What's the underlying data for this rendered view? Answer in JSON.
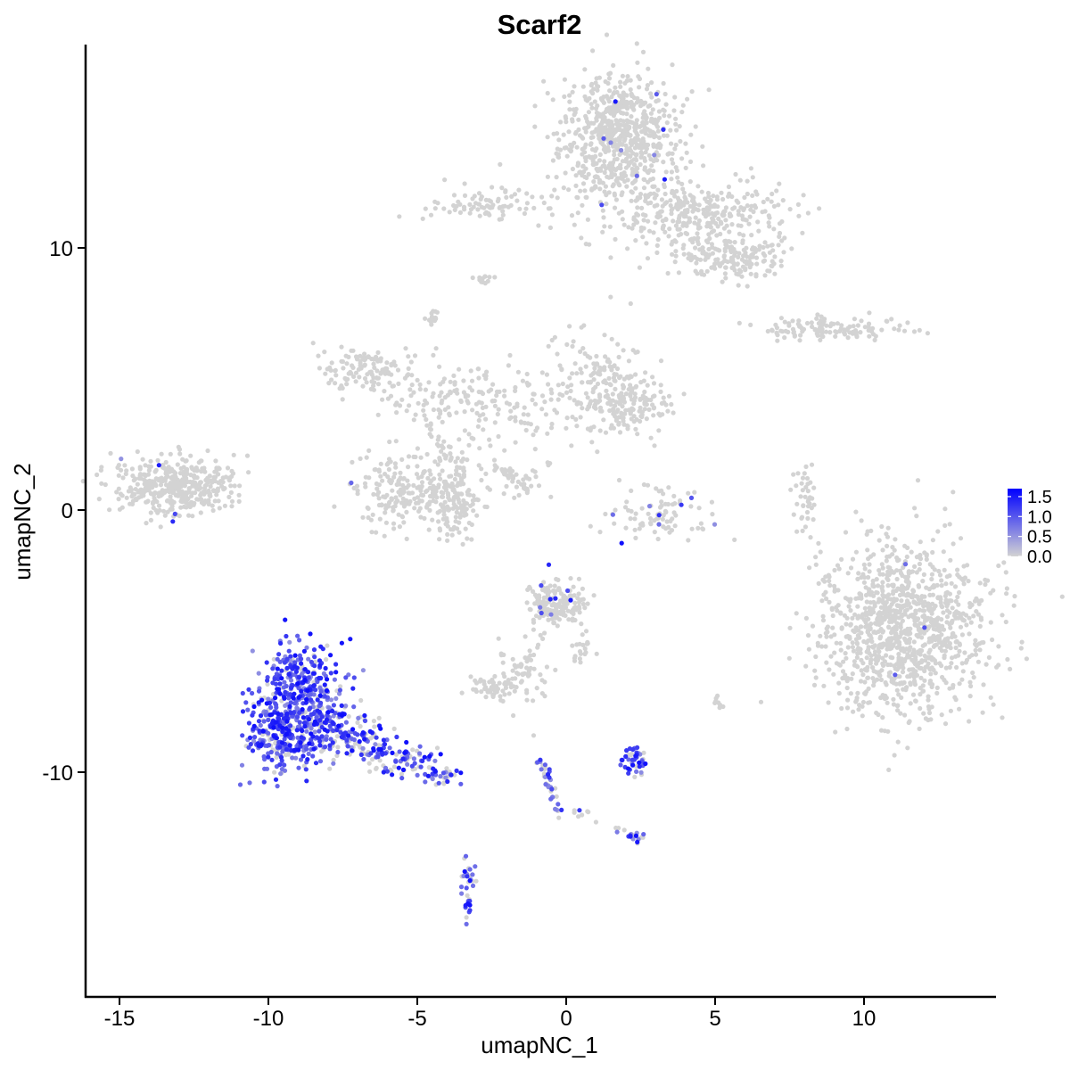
{
  "chart_data": {
    "type": "scatter",
    "title": "Scarf2",
    "xlabel": "umapNC_1",
    "ylabel": "umapNC_2",
    "xlim": [
      -16.5,
      14.5
    ],
    "ylim": [
      -18.5,
      17.5
    ],
    "x_ticks": [
      -15,
      -10,
      -5,
      0,
      5,
      10
    ],
    "x_tick_labels": [
      "-15",
      "-10",
      "-5",
      "0",
      "5",
      "10"
    ],
    "y_ticks": [
      -10,
      0,
      10
    ],
    "y_tick_labels": [
      "-10",
      "0",
      "10"
    ],
    "grid": false,
    "legend": {
      "position": "right",
      "type": "colorbar",
      "range": [
        0,
        1.7
      ],
      "ticks": [
        0.0,
        0.5,
        1.0,
        1.5
      ],
      "tick_labels": [
        "0.0",
        "0.5",
        "1.0",
        "1.5"
      ]
    },
    "colors": {
      "low": "#d3d3d3",
      "high": "#0000ff"
    },
    "clusters": [
      {
        "cx": 1.8,
        "cy": 14.2,
        "sx": 1.0,
        "sy": 1.2,
        "n": 700,
        "expr": 0.01
      },
      {
        "cx": 4.5,
        "cy": 11.3,
        "sx": 1.6,
        "sy": 0.7,
        "n": 320,
        "expr": 0.0
      },
      {
        "cx": 5.6,
        "cy": 9.6,
        "sx": 0.9,
        "sy": 0.4,
        "n": 160,
        "expr": 0.0
      },
      {
        "cx": -2.6,
        "cy": 11.6,
        "sx": 1.0,
        "sy": 0.35,
        "n": 90,
        "expr": 0.01
      },
      {
        "cx": -2.8,
        "cy": 8.8,
        "sx": 0.2,
        "sy": 0.15,
        "n": 12,
        "expr": 0.0
      },
      {
        "cx": -4.5,
        "cy": 7.4,
        "sx": 0.2,
        "sy": 0.2,
        "n": 14,
        "expr": 0.0
      },
      {
        "cx": 9.0,
        "cy": 6.9,
        "sx": 1.2,
        "sy": 0.22,
        "n": 120,
        "expr": 0.0
      },
      {
        "cx": -6.6,
        "cy": 5.3,
        "sx": 0.9,
        "sy": 0.5,
        "n": 120,
        "expr": 0.0
      },
      {
        "cx": -4.2,
        "cy": 4.3,
        "sx": 1.0,
        "sy": 0.7,
        "n": 100,
        "expr": 0.0
      },
      {
        "cx": -1.4,
        "cy": 3.7,
        "sx": 1.4,
        "sy": 0.9,
        "n": 110,
        "expr": 0.0
      },
      {
        "cx": 1.2,
        "cy": 4.9,
        "sx": 0.8,
        "sy": 0.9,
        "n": 150,
        "expr": 0.0
      },
      {
        "cx": 2.3,
        "cy": 4.0,
        "sx": 0.6,
        "sy": 0.5,
        "n": 110,
        "expr": 0.0
      },
      {
        "cx": -3.7,
        "cy": 1.2,
        "sx": 0.4,
        "sy": 0.9,
        "n": 60,
        "expr": 0.0
      },
      {
        "cx": -5.6,
        "cy": 0.8,
        "sx": 0.7,
        "sy": 0.7,
        "n": 170,
        "expr": 0.01
      },
      {
        "cx": -3.9,
        "cy": 0.3,
        "sx": 0.5,
        "sy": 0.7,
        "n": 120,
        "expr": 0.0
      },
      {
        "cx": -1.7,
        "cy": 1.3,
        "sx": 0.6,
        "sy": 0.35,
        "n": 30,
        "expr": 0.0
      },
      {
        "cx": 3.2,
        "cy": -0.2,
        "sx": 0.9,
        "sy": 0.45,
        "n": 90,
        "expr": 0.02
      },
      {
        "cx": 8.0,
        "cy": 0.3,
        "sx": 0.2,
        "sy": 0.8,
        "n": 40,
        "expr": 0.0
      },
      {
        "cx": -13.2,
        "cy": 0.9,
        "sx": 1.0,
        "sy": 0.55,
        "n": 420,
        "expr": 0.01
      },
      {
        "cx": 11.3,
        "cy": -4.6,
        "sx": 1.4,
        "sy": 1.6,
        "n": 1100,
        "expr": 0.005
      },
      {
        "cx": -0.3,
        "cy": -3.6,
        "sx": 0.5,
        "sy": 0.4,
        "n": 170,
        "expr": 0.06
      },
      {
        "cx": -1.4,
        "cy": -6.1,
        "sx": 0.5,
        "sy": 0.8,
        "n": 50,
        "expr": 0.0
      },
      {
        "cx": -2.5,
        "cy": -6.8,
        "sx": 0.35,
        "sy": 0.2,
        "n": 50,
        "expr": 0.0
      },
      {
        "cx": -8.9,
        "cy": -6.6,
        "sx": 0.7,
        "sy": 0.8,
        "n": 260,
        "expr": 0.88
      },
      {
        "cx": -9.6,
        "cy": -8.6,
        "sx": 0.6,
        "sy": 0.7,
        "n": 260,
        "expr": 0.85
      },
      {
        "cx": -8.2,
        "cy": -8.1,
        "sx": 0.6,
        "sy": 0.7,
        "n": 160,
        "expr": 0.78
      },
      {
        "cx": -6.7,
        "cy": -8.8,
        "sx": 0.5,
        "sy": 0.4,
        "n": 90,
        "expr": 0.62
      },
      {
        "cx": -5.3,
        "cy": -9.6,
        "sx": 0.5,
        "sy": 0.3,
        "n": 80,
        "expr": 0.6
      },
      {
        "cx": -4.2,
        "cy": -10.1,
        "sx": 0.3,
        "sy": 0.2,
        "n": 30,
        "expr": 0.62
      },
      {
        "cx": 2.2,
        "cy": -9.6,
        "sx": 0.25,
        "sy": 0.25,
        "n": 45,
        "expr": 0.7
      },
      {
        "cx": 2.3,
        "cy": -12.5,
        "sx": 0.15,
        "sy": 0.12,
        "n": 16,
        "expr": 0.7
      },
      {
        "cx": -3.3,
        "cy": -14.6,
        "sx": 0.12,
        "sy": 0.5,
        "n": 35,
        "expr": 0.7
      },
      {
        "cx": 5.1,
        "cy": -7.3,
        "sx": 0.1,
        "sy": 0.2,
        "n": 8,
        "expr": 0.0
      },
      {
        "cx": 0.5,
        "cy": -5.3,
        "sx": 0.3,
        "sy": 0.4,
        "n": 20,
        "expr": 0.05
      }
    ],
    "strands": [
      {
        "x1": -0.9,
        "y1": -9.3,
        "x2": -0.2,
        "y2": -11.8,
        "n": 40,
        "expr": 0.7
      },
      {
        "x1": 0.3,
        "y1": -11.4,
        "x2": 2.3,
        "y2": -12.5,
        "n": 14,
        "expr": 0.1
      },
      {
        "x1": -2.5,
        "y1": 1.8,
        "x2": -1.2,
        "y2": 0.7,
        "n": 22,
        "expr": 0.0
      },
      {
        "x1": -4.6,
        "y1": 3.1,
        "x2": -3.4,
        "y2": 1.2,
        "n": 14,
        "expr": 0.0
      },
      {
        "x1": 0.9,
        "y1": 12.2,
        "x2": 2.8,
        "y2": 13.2,
        "n": 18,
        "expr": 0.0
      },
      {
        "x1": -2.0,
        "y1": -6.7,
        "x2": -0.5,
        "y2": -4.4,
        "n": 14,
        "expr": 0.0
      }
    ]
  }
}
